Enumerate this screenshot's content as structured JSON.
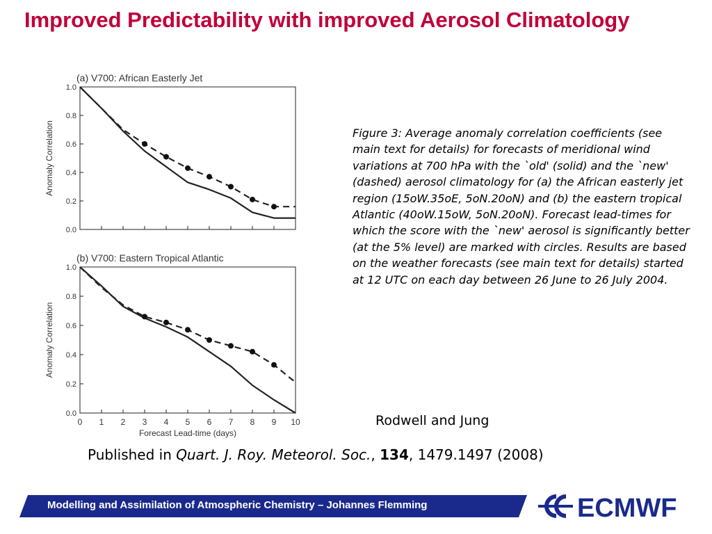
{
  "slide": {
    "title": "Improved Predictability with improved Aerosol Climatology",
    "caption": "Figure 3: Average anomaly correlation coefficients (see main text for details) for forecasts of meridional wind variations at 700 hPa with the `old' (solid) and the `new' (dashed) aerosol climatology for (a) the African easterly jet region (15oW.35oE, 5oN.20oN) and (b) the eastern tropical Atlantic (40oW.15oW, 5oN.20oN). Forecast lead-times for which the score with the `new' aerosol is significantly better (at the 5% level) are marked with circles. Results are based on the weather forecasts (see main text for details) started at 12 UTC on each day between 26 June to 26 July 2004.",
    "author": "Rodwell and Jung",
    "pub_prefix": "Published in ",
    "pub_journal": "Quart. J. Roy. Meteorol. Soc.",
    "pub_sep": ", ",
    "pub_volume": "134",
    "pub_pages": ", 1479.1497 (2008)",
    "footer_text": "Modelling and Assimilation of Atmospheric Chemistry  – Johannes Flemming",
    "logo_text": "ECMWF",
    "colors": {
      "title": "#c0003a",
      "footer": "#1a2a8c",
      "logo": "#1a2a8c"
    }
  },
  "chart_data": [
    {
      "type": "line",
      "title": "(a) V700: African Easterly Jet",
      "xlabel": "",
      "ylabel": "Anomaly Correlation",
      "x": [
        0,
        1,
        2,
        3,
        4,
        5,
        6,
        7,
        8,
        9,
        10
      ],
      "xlim": [
        0,
        10
      ],
      "ylim": [
        0,
        1
      ],
      "yticks": [
        "0.0",
        "0.2",
        "0.4",
        "0.6",
        "0.8",
        "1.0"
      ],
      "series": [
        {
          "style": "solid",
          "values": [
            1.0,
            0.85,
            0.69,
            0.55,
            0.44,
            0.33,
            0.28,
            0.22,
            0.12,
            0.08,
            0.08
          ]
        },
        {
          "style": "dashed",
          "values": [
            1.0,
            0.85,
            0.7,
            0.6,
            0.51,
            0.43,
            0.37,
            0.3,
            0.21,
            0.16,
            0.16
          ],
          "markers_at": [
            3,
            4,
            5,
            6,
            7,
            8,
            9
          ]
        }
      ]
    },
    {
      "type": "line",
      "title": "(b) V700: Eastern Tropical Atlantic",
      "xlabel": "Forecast Lead-time (days)",
      "ylabel": "Anomaly Correlation",
      "x": [
        0,
        1,
        2,
        3,
        4,
        5,
        6,
        7,
        8,
        9,
        10
      ],
      "xlim": [
        0,
        10
      ],
      "ylim": [
        0,
        1
      ],
      "xticks": [
        "0",
        "1",
        "2",
        "3",
        "4",
        "5",
        "6",
        "7",
        "8",
        "9",
        "10"
      ],
      "yticks": [
        "0.0",
        "0.2",
        "0.4",
        "0.6",
        "0.8",
        "1.0"
      ],
      "series": [
        {
          "style": "solid",
          "values": [
            1.0,
            0.87,
            0.73,
            0.65,
            0.59,
            0.52,
            0.42,
            0.32,
            0.19,
            0.09,
            0.0
          ]
        },
        {
          "style": "dashed",
          "values": [
            1.0,
            0.86,
            0.74,
            0.66,
            0.62,
            0.57,
            0.5,
            0.46,
            0.42,
            0.33,
            0.21
          ],
          "markers_at": [
            3,
            4,
            5,
            6,
            7,
            8,
            9
          ]
        }
      ]
    }
  ]
}
